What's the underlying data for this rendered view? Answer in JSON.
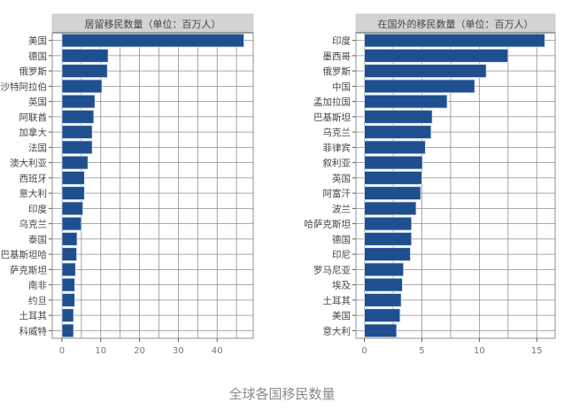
{
  "caption": "全球各国移民数量",
  "colors": {
    "bar": "#1f4f8f",
    "bar_edge": "#d6e4f0",
    "title_band": "#d3d3d3",
    "grid": "#8f8f8f",
    "axis": "#555555",
    "tick_text": "#777777"
  },
  "chart_data": [
    {
      "type": "bar",
      "orientation": "horizontal",
      "title": "居留移民数量（单位：百万人）",
      "categories": [
        "美国",
        "德国",
        "俄罗斯",
        "沙特阿拉伯",
        "英国",
        "阿联酋",
        "加拿大",
        "法国",
        "澳大利亚",
        "西班牙",
        "意大利",
        "印度",
        "乌克兰",
        "泰国",
        "巴基斯坦哈",
        "萨克斯坦",
        "南非",
        "约旦",
        "土耳其",
        "科威特"
      ],
      "values": [
        46.9,
        11.9,
        11.7,
        10.3,
        8.5,
        8.2,
        7.8,
        7.8,
        6.7,
        5.8,
        5.8,
        5.4,
        5.0,
        3.9,
        3.8,
        3.5,
        3.3,
        3.3,
        3.0,
        3.0
      ],
      "xlim": [
        -2.5,
        49.3
      ],
      "xticks": [
        "0",
        "10",
        "20",
        "30",
        "40"
      ],
      "grid": true
    },
    {
      "type": "bar",
      "orientation": "horizontal",
      "title": "在国外的移民数量（单位：百万人）",
      "categories": [
        "印度",
        "墨西哥",
        "俄罗斯",
        "中国",
        "孟加拉国",
        "巴基斯坦",
        "乌克兰",
        "菲律宾",
        "叙利亚",
        "英国",
        "阿富汗",
        "波兰",
        "哈萨克斯坦",
        "德国",
        "印尼",
        "罗马尼亚",
        "埃及",
        "土耳其",
        "美国",
        "意大利"
      ],
      "values": [
        15.7,
        12.5,
        10.6,
        9.6,
        7.2,
        5.9,
        5.8,
        5.3,
        5.05,
        5.0,
        4.9,
        4.5,
        4.1,
        4.1,
        4.0,
        3.4,
        3.3,
        3.2,
        3.1,
        2.8
      ],
      "xlim": [
        -0.74,
        16.6
      ],
      "xticks": [
        "0",
        "5",
        "10",
        "15"
      ],
      "grid": true
    }
  ]
}
